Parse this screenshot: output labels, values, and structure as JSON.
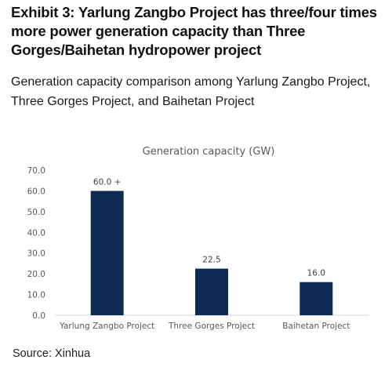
{
  "exhibit": {
    "title": "Exhibit 3: Yarlung Zangbo Project has three/four times more power generation capacity than Three Gorges/Baihetan hydropower project",
    "subtitle": "Generation capacity comparison among Yarlung Zangbo Project, Three Gorges Project, and Baihetan Project",
    "source": "Source: Xinhua"
  },
  "chart_data": {
    "type": "bar",
    "title": "Generation capacity (GW)",
    "categories": [
      "Yarlung Zangbo Project",
      "Three Gorges Project",
      "Baihetan Project"
    ],
    "values": [
      60.0,
      22.5,
      16.0
    ],
    "data_labels": [
      "60.0 +",
      "22.5",
      "16.0"
    ],
    "yticks": [
      "0.0",
      "10.0",
      "20.0",
      "30.0",
      "40.0",
      "50.0",
      "60.0",
      "70.0"
    ],
    "ylim": [
      0,
      70
    ],
    "xlabel": "",
    "ylabel": "",
    "grid": false,
    "bar_color": "#0d2c54"
  }
}
